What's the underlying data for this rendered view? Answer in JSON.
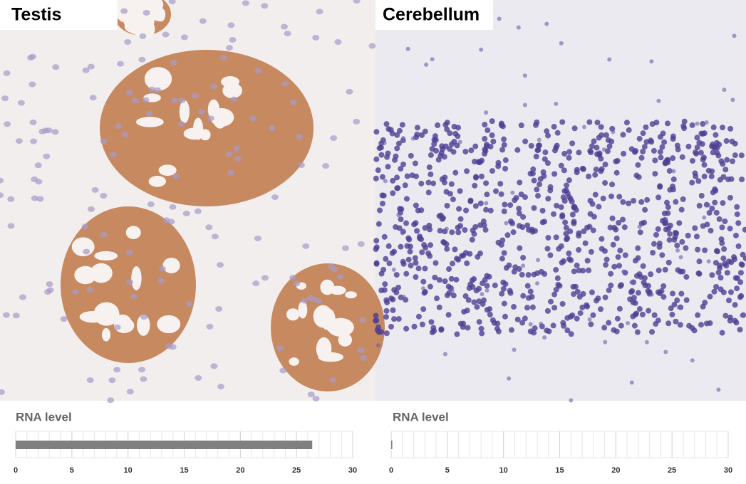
{
  "panels": [
    {
      "label": "Testis"
    },
    {
      "label": "Cerebellum"
    }
  ],
  "chart_data": [
    {
      "type": "bar",
      "orientation": "horizontal",
      "title": "RNA level",
      "values": [
        26.4
      ],
      "color": "#808080",
      "xlim": [
        0,
        30
      ],
      "xticks": [
        0,
        5,
        10,
        15,
        20,
        25,
        30
      ],
      "minor_xticks": [
        0,
        1,
        2,
        3,
        4,
        5,
        6,
        7,
        8,
        9,
        10,
        11,
        12,
        13,
        14,
        15,
        16,
        17,
        18,
        19,
        20,
        21,
        22,
        23,
        24,
        25,
        26,
        27,
        28,
        29,
        30
      ],
      "grid": true
    },
    {
      "type": "bar",
      "orientation": "horizontal",
      "title": "RNA level",
      "values": [
        0.1
      ],
      "color": "#808080",
      "xlim": [
        0,
        30
      ],
      "xticks": [
        0,
        5,
        10,
        15,
        20,
        25,
        30
      ],
      "minor_xticks": [
        0,
        1,
        2,
        3,
        4,
        5,
        6,
        7,
        8,
        9,
        10,
        11,
        12,
        13,
        14,
        15,
        16,
        17,
        18,
        19,
        20,
        21,
        22,
        23,
        24,
        25,
        26,
        27,
        28,
        29,
        30
      ],
      "grid": true
    }
  ]
}
